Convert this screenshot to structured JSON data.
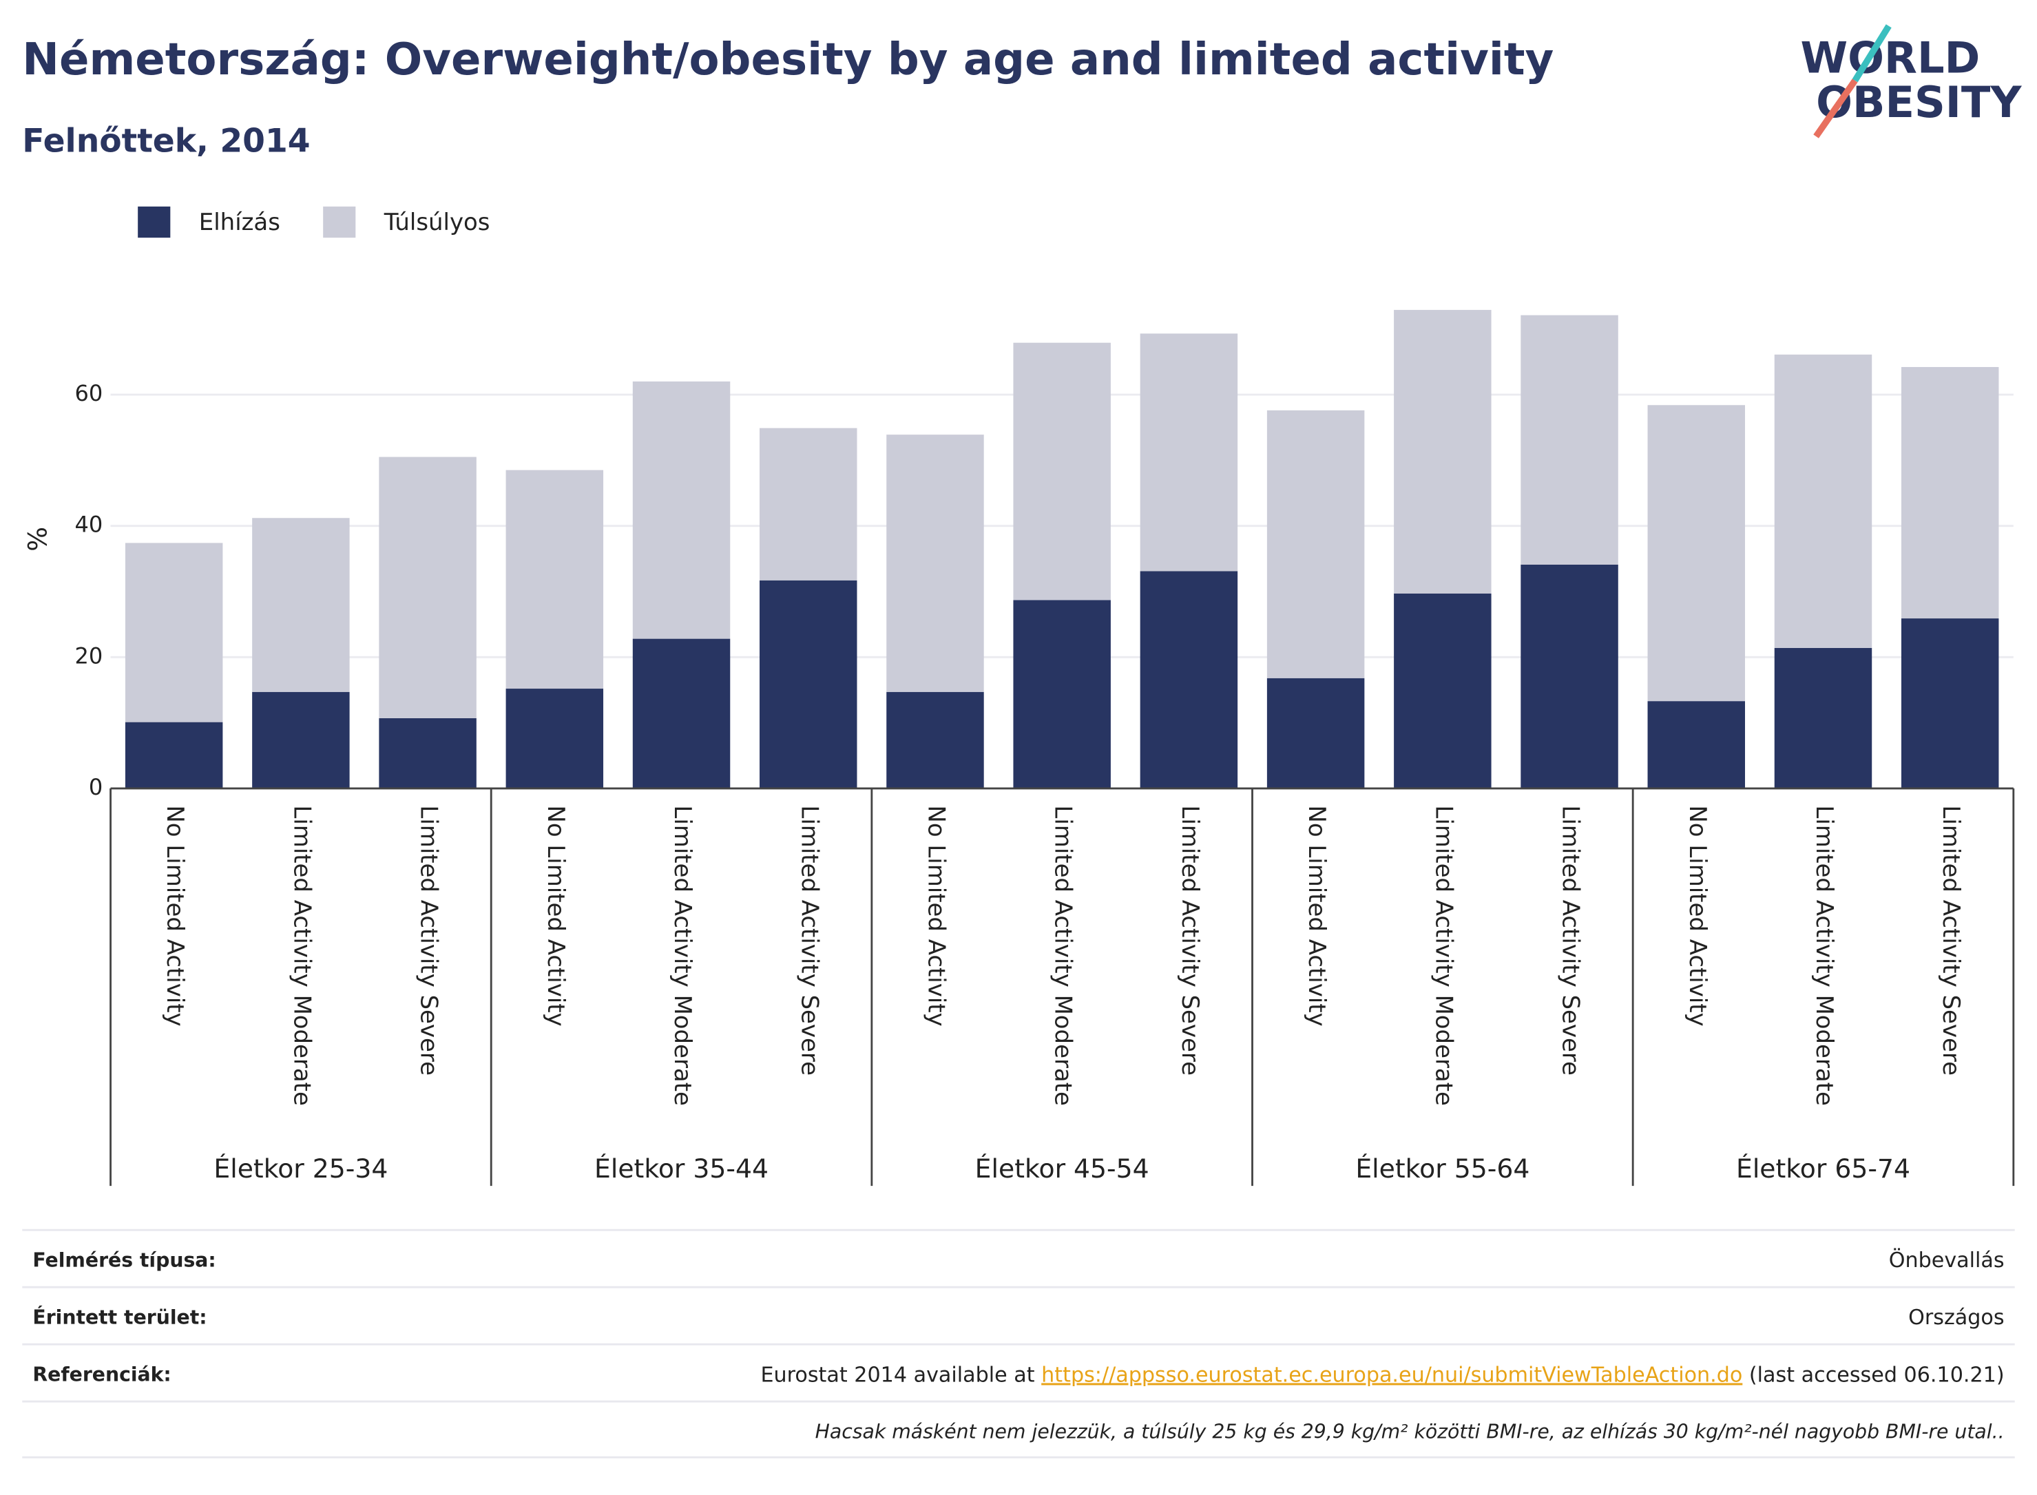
{
  "chart_data": {
    "type": "stacked-bar",
    "title": "Németország: Overweight/obesity by age and limited activity",
    "subtitle": "Felnőttek, 2014",
    "y_label": "%",
    "logo": [
      "WORLD",
      "OBESITY"
    ],
    "categories": [
      "No Limited Activity",
      "Limited Activity Moderate",
      "Limited Activity Severe",
      "No Limited Activity",
      "Limited Activity Moderate",
      "Limited Activity Severe",
      "No Limited Activity",
      "Limited Activity Moderate",
      "Limited Activity Severe",
      "No Limited Activity",
      "Limited Activity Moderate",
      "Limited Activity Severe",
      "No Limited Activity",
      "Limited Activity Moderate",
      "Limited Activity Severe"
    ],
    "groups": [
      "Életkor 25-34",
      "Életkor 35-44",
      "Életkor 45-54",
      "Életkor 55-64",
      "Életkor 65-74"
    ],
    "series": [
      {
        "name": "Elhízás",
        "color": "#283562",
        "values": [
          10.1,
          14.7,
          10.7,
          15.2,
          22.8,
          31.7,
          14.7,
          28.7,
          33.1,
          16.8,
          29.7,
          34.1,
          13.3,
          21.4,
          25.9
        ]
      },
      {
        "name": "Túlsúlyos",
        "color": "#cbccd8",
        "values": [
          27.3,
          26.5,
          39.8,
          33.3,
          39.2,
          23.2,
          39.2,
          39.2,
          36.2,
          40.8,
          43.2,
          38.0,
          45.1,
          44.7,
          38.3
        ]
      }
    ],
    "ylim": [
      0,
      75
    ],
    "yticks": [
      0,
      20,
      40,
      60
    ],
    "grid": true
  },
  "footer": {
    "rows": [
      {
        "label": "Felmérés típusa:",
        "value": "Önbevallás"
      },
      {
        "label": "Érintett terület:",
        "value": "Országos"
      }
    ],
    "reference": {
      "label": "Referenciák:",
      "pre": "Eurostat 2014 available at ",
      "link": "https://appsso.eurostat.ec.europa.eu/nui/submitViewTableAction.do",
      "post": " (last accessed 06.10.21)"
    },
    "note": "Hacsak másként nem jelezzük, a túlsúly 25 kg és 29,9 kg/m² közötti BMI-re, az elhízás 30 kg/m²-nél nagyobb BMI-re utal.."
  }
}
